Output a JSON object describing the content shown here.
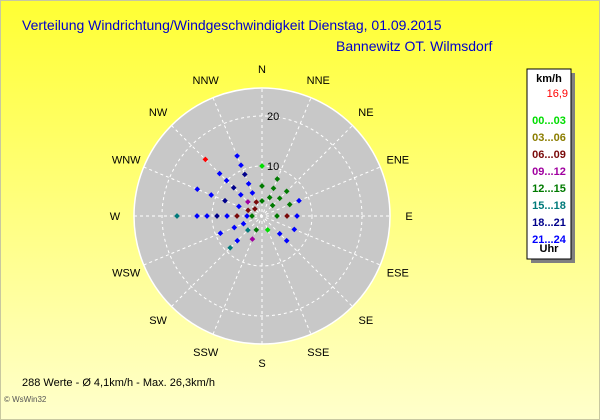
{
  "title": "Verteilung Windrichtung/Windgeschwindigkeit  Dienstag, 01.09.2015",
  "location": "Bannewitz OT. Wilmsdorf",
  "legend": {
    "unit": "km/h",
    "max_value": "16,9",
    "ranges": [
      {
        "label": "00...03",
        "color": "#00dd00"
      },
      {
        "label": "03...06",
        "color": "#8b7d00"
      },
      {
        "label": "06...09",
        "color": "#7a0a0a"
      },
      {
        "label": "09...12",
        "color": "#a000a0"
      },
      {
        "label": "12...15",
        "color": "#007a00"
      },
      {
        "label": "15...18",
        "color": "#007a7a"
      },
      {
        "label": "18...21",
        "color": "#00008b"
      },
      {
        "label": "21...24",
        "color": "#0000ff"
      }
    ],
    "footer": "Uhr"
  },
  "stats": "288 Werte   -   Ø 4,1km/h  -  Max. 26,3km/h",
  "credit": "© WsWin32",
  "colors": {
    "background": "#ffff66",
    "title": "#0000cc",
    "polar_fill": "#c8c8c8",
    "grid": "#ffffff",
    "legend_max": "#ff0000",
    "legend_bg": "#ffffff"
  },
  "chart_data": {
    "type": "scatter",
    "coordinate_system": "polar",
    "radial_unit": "km/h",
    "radial_range": [
      0,
      25
    ],
    "radial_ticks": [
      10,
      20
    ],
    "direction_labels": [
      "N",
      "NNE",
      "NE",
      "ENE",
      "E",
      "ESE",
      "SE",
      "SSE",
      "S",
      "SSW",
      "SW",
      "WSW",
      "W",
      "WNW",
      "NW",
      "NNW"
    ],
    "points": [
      {
        "dir": 0,
        "speed": 10,
        "color": "#00dd00"
      },
      {
        "dir": 0,
        "speed": 6,
        "color": "#007a00"
      },
      {
        "dir": 0,
        "speed": 3,
        "color": "#007a00"
      },
      {
        "dir": 22.5,
        "speed": 8,
        "color": "#007a00"
      },
      {
        "dir": 22.5,
        "speed": 6,
        "color": "#007a00"
      },
      {
        "dir": 22.5,
        "speed": 4,
        "color": "#007a00"
      },
      {
        "dir": 45,
        "speed": 7,
        "color": "#007a00"
      },
      {
        "dir": 45,
        "speed": 5,
        "color": "#007a00"
      },
      {
        "dir": 45,
        "speed": 3,
        "color": "#007a00"
      },
      {
        "dir": 67.5,
        "speed": 8,
        "color": "#0000ff"
      },
      {
        "dir": 67.5,
        "speed": 6,
        "color": "#007a00"
      },
      {
        "dir": 90,
        "speed": 7,
        "color": "#0000ff"
      },
      {
        "dir": 90,
        "speed": 5,
        "color": "#7a0a0a"
      },
      {
        "dir": 90,
        "speed": 3,
        "color": "#007a00"
      },
      {
        "dir": 112.5,
        "speed": 7,
        "color": "#0000ff"
      },
      {
        "dir": 135,
        "speed": 7,
        "color": "#0000ff"
      },
      {
        "dir": 135,
        "speed": 5,
        "color": "#0000ff"
      },
      {
        "dir": 157.5,
        "speed": 3,
        "color": "#00dd00"
      },
      {
        "dir": 202.5,
        "speed": 5,
        "color": "#a000a0"
      },
      {
        "dir": 202.5,
        "speed": 3,
        "color": "#007a00"
      },
      {
        "dir": 225,
        "speed": 9,
        "color": "#007a7a"
      },
      {
        "dir": 225,
        "speed": 7,
        "color": "#0000ff"
      },
      {
        "dir": 225,
        "speed": 4,
        "color": "#007a7a"
      },
      {
        "dir": 247.5,
        "speed": 9,
        "color": "#0000ff"
      },
      {
        "dir": 247.5,
        "speed": 6,
        "color": "#0000ff"
      },
      {
        "dir": 247.5,
        "speed": 4,
        "color": "#0000ff"
      },
      {
        "dir": 270,
        "speed": 17,
        "color": "#007a7a"
      },
      {
        "dir": 270,
        "speed": 13,
        "color": "#0000ff"
      },
      {
        "dir": 270,
        "speed": 11,
        "color": "#0000ff"
      },
      {
        "dir": 270,
        "speed": 9,
        "color": "#00008b"
      },
      {
        "dir": 270,
        "speed": 7,
        "color": "#0000ff"
      },
      {
        "dir": 270,
        "speed": 5,
        "color": "#7a0a0a"
      },
      {
        "dir": 270,
        "speed": 3,
        "color": "#0000ff"
      },
      {
        "dir": 270,
        "speed": 2,
        "color": "#007a00"
      },
      {
        "dir": 292.5,
        "speed": 14,
        "color": "#0000ff"
      },
      {
        "dir": 292.5,
        "speed": 11,
        "color": "#0000ff"
      },
      {
        "dir": 292.5,
        "speed": 8,
        "color": "#00008b"
      },
      {
        "dir": 292.5,
        "speed": 5,
        "color": "#0000ff"
      },
      {
        "dir": 292.5,
        "speed": 3,
        "color": "#7a0a0a"
      },
      {
        "dir": 315,
        "speed": 16,
        "color": "#ff0000"
      },
      {
        "dir": 315,
        "speed": 12,
        "color": "#0000ff"
      },
      {
        "dir": 315,
        "speed": 10,
        "color": "#0000ff"
      },
      {
        "dir": 315,
        "speed": 8,
        "color": "#00008b"
      },
      {
        "dir": 315,
        "speed": 6,
        "color": "#0000ff"
      },
      {
        "dir": 315,
        "speed": 4,
        "color": "#a000a0"
      },
      {
        "dir": 315,
        "speed": 2,
        "color": "#7a0a0a"
      },
      {
        "dir": 337.5,
        "speed": 13,
        "color": "#0000ff"
      },
      {
        "dir": 337.5,
        "speed": 11,
        "color": "#0000ff"
      },
      {
        "dir": 337.5,
        "speed": 9,
        "color": "#00008b"
      },
      {
        "dir": 337.5,
        "speed": 7,
        "color": "#0000ff"
      },
      {
        "dir": 337.5,
        "speed": 5,
        "color": "#0000ff"
      },
      {
        "dir": 337.5,
        "speed": 3,
        "color": "#7a0a0a"
      }
    ]
  }
}
